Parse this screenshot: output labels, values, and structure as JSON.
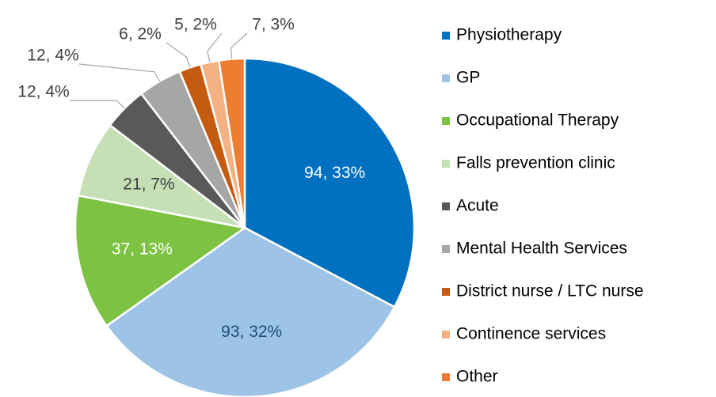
{
  "chart_data": {
    "type": "pie",
    "categories": [
      "Physiotherapy",
      "GP",
      "Occupational Therapy",
      "Falls prevention clinic",
      "Acute",
      "Mental Health Services",
      "District nurse /  LTC nurse",
      "Continence services",
      "Other"
    ],
    "values": [
      94,
      93,
      37,
      21,
      12,
      12,
      6,
      5,
      7
    ],
    "value_labels": [
      "94, 33%",
      "93, 32%",
      "37, 13%",
      "21, 7%",
      "12, 4%",
      "12, 4%",
      "6, 2%",
      "5, 2%",
      "7, 3%"
    ],
    "colors": [
      "#0070c0",
      "#9dc3e6",
      "#7dc242",
      "#c5e0b4",
      "#595959",
      "#a6a6a6",
      "#c55a11",
      "#f4b183",
      "#ed7d31"
    ],
    "label_colors": [
      "#ffffff",
      "#1f4e79",
      "#ffffff",
      "#404040",
      "#404040",
      "#404040",
      "#404040",
      "#404040",
      "#404040"
    ],
    "legend": "right"
  }
}
